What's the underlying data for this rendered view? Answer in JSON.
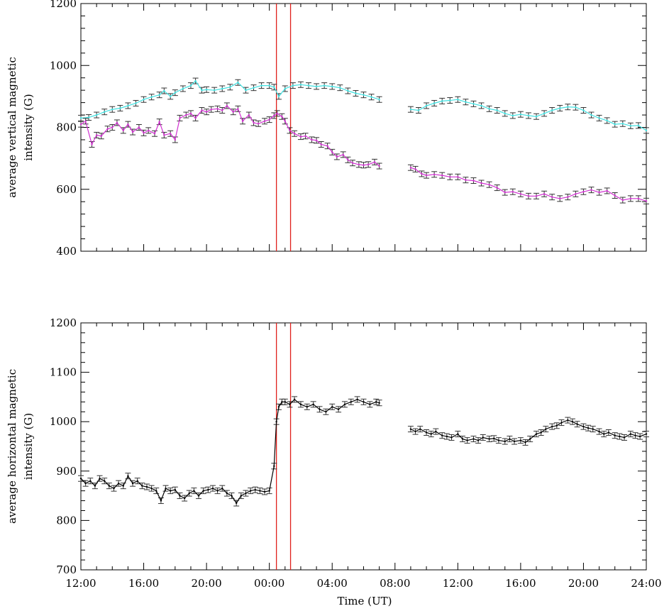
{
  "chart_data": [
    {
      "type": "line",
      "ylabel_lines": [
        "average vertical magnetic",
        "intensity (G)"
      ],
      "xlabel": "",
      "xlim": [
        12,
        48
      ],
      "ylim": [
        400,
        1200
      ],
      "yticks": [
        400,
        600,
        800,
        1000,
        1200
      ],
      "x_tick_labels_shown": false,
      "vlines": [
        24.45,
        25.35
      ],
      "vline_color": "#e0201c",
      "series": [
        {
          "color": "#40e0e0",
          "errorbars": true,
          "segments": [
            {
              "x": [
                12.0,
                12.5,
                13.0,
                13.5,
                14.0,
                14.5,
                15.0,
                15.5,
                16.0,
                16.5,
                17.0,
                17.3,
                17.7,
                18.0,
                18.5,
                19.0,
                19.3,
                19.7,
                20.0,
                20.5,
                21.0,
                21.5,
                22.0,
                22.5,
                23.0,
                23.5,
                24.0,
                24.3,
                24.6,
                25.0,
                25.5,
                26.0,
                26.5,
                27.0,
                27.5,
                28.0,
                28.5,
                29.0,
                29.5,
                30.0,
                30.5,
                31.0
              ],
              "y": [
                830,
                832,
                840,
                850,
                858,
                862,
                870,
                878,
                890,
                898,
                905,
                918,
                900,
                912,
                925,
                935,
                950,
                920,
                922,
                920,
                925,
                930,
                945,
                920,
                928,
                935,
                935,
                930,
                900,
                925,
                935,
                938,
                935,
                932,
                935,
                932,
                928,
                918,
                910,
                905,
                898,
                890
              ]
            },
            {
              "x": [
                33.0,
                33.5,
                34.0,
                34.5,
                35.0,
                35.5,
                36.0,
                36.5,
                37.0,
                37.5,
                38.0,
                38.5,
                39.0,
                39.5,
                40.0,
                40.5,
                41.0,
                41.5,
                42.0,
                42.5,
                43.0,
                43.5,
                44.0,
                44.5,
                45.0,
                45.5,
                46.0,
                46.5,
                47.0,
                47.5,
                48.0
              ],
              "y": [
                858,
                855,
                870,
                878,
                885,
                887,
                890,
                882,
                876,
                870,
                860,
                855,
                845,
                838,
                842,
                838,
                835,
                845,
                855,
                862,
                866,
                865,
                855,
                840,
                830,
                822,
                810,
                812,
                805,
                806,
                790
              ]
            }
          ]
        },
        {
          "color": "#d030d0",
          "errorbars": true,
          "segments": [
            {
              "x": [
                12.0,
                12.3,
                12.7,
                13.0,
                13.3,
                13.7,
                14.0,
                14.3,
                14.7,
                15.0,
                15.3,
                15.7,
                16.0,
                16.3,
                16.7,
                17.0,
                17.3,
                17.7,
                18.0,
                18.3,
                18.7,
                19.0,
                19.3,
                19.7,
                20.0,
                20.3,
                20.7,
                21.0,
                21.3,
                21.7,
                22.0,
                22.3,
                22.7,
                23.0,
                23.3,
                23.7,
                24.0,
                24.3,
                24.5,
                24.8,
                25.0,
                25.3,
                25.6,
                26.0,
                26.3,
                26.7,
                27.0,
                27.3,
                27.7,
                28.0,
                28.3,
                28.7,
                29.0,
                29.3,
                29.7,
                30.0,
                30.3,
                30.7,
                31.0
              ],
              "y": [
                810,
                820,
                745,
                775,
                772,
                795,
                800,
                815,
                790,
                810,
                785,
                800,
                782,
                790,
                780,
                818,
                775,
                780,
                760,
                830,
                840,
                845,
                830,
                855,
                850,
                858,
                860,
                855,
                870,
                850,
                860,
                820,
                840,
                815,
                812,
                820,
                825,
                838,
                845,
                835,
                820,
                790,
                780,
                770,
                772,
                760,
                758,
                745,
                740,
                720,
                705,
                712,
                695,
                685,
                680,
                678,
                680,
                688,
                675
              ]
            },
            {
              "x": [
                33.0,
                33.3,
                33.7,
                34.0,
                34.5,
                35.0,
                35.5,
                36.0,
                36.5,
                37.0,
                37.5,
                38.0,
                38.5,
                39.0,
                39.5,
                40.0,
                40.5,
                41.0,
                41.5,
                42.0,
                42.5,
                43.0,
                43.5,
                44.0,
                44.5,
                45.0,
                45.5,
                46.0,
                46.5,
                47.0,
                47.5,
                48.0
              ],
              "y": [
                670,
                665,
                650,
                645,
                648,
                645,
                640,
                640,
                630,
                628,
                620,
                615,
                605,
                590,
                592,
                585,
                578,
                578,
                585,
                575,
                570,
                575,
                585,
                592,
                598,
                590,
                595,
                580,
                565,
                570,
                570,
                562
              ]
            }
          ]
        }
      ]
    },
    {
      "type": "line",
      "ylabel_lines": [
        "average horizontal magnetic",
        "intensity (G)"
      ],
      "xlabel": "Time (UT)",
      "xlim": [
        12,
        48
      ],
      "ylim": [
        700,
        1200
      ],
      "yticks": [
        700,
        800,
        900,
        1000,
        1100,
        1200
      ],
      "x_tick_labels_shown": true,
      "xticks": [
        12,
        16,
        20,
        24,
        28,
        32,
        36,
        40,
        44,
        48
      ],
      "xtick_labels": [
        "12:00",
        "16:00",
        "20:00",
        "00:00",
        "04:00",
        "08:00",
        "12:00",
        "16:00",
        "20:00",
        "24:00"
      ],
      "vlines": [
        24.45,
        25.35
      ],
      "vline_color": "#e0201c",
      "series": [
        {
          "color": "#000000",
          "errorbars": true,
          "segments": [
            {
              "x": [
                12.0,
                12.3,
                12.6,
                12.9,
                13.2,
                13.5,
                13.8,
                14.1,
                14.4,
                14.7,
                15.0,
                15.3,
                15.6,
                15.9,
                16.2,
                16.5,
                16.8,
                17.1,
                17.4,
                17.7,
                18.0,
                18.3,
                18.6,
                18.9,
                19.2,
                19.5,
                19.8,
                20.1,
                20.4,
                20.7,
                21.0,
                21.3,
                21.6,
                21.9,
                22.2,
                22.5,
                22.8,
                23.1,
                23.4,
                23.7,
                24.0,
                24.3,
                24.45,
                24.6,
                24.8,
                25.0,
                25.3,
                25.6,
                26.0,
                26.4,
                26.8,
                27.2,
                27.6,
                28.0,
                28.4,
                28.8,
                29.2,
                29.6,
                30.0,
                30.4,
                30.8,
                31.0
              ],
              "y": [
                885,
                875,
                880,
                870,
                885,
                880,
                870,
                865,
                875,
                870,
                890,
                875,
                880,
                870,
                868,
                865,
                860,
                840,
                865,
                860,
                862,
                850,
                845,
                855,
                860,
                850,
                860,
                862,
                865,
                860,
                865,
                855,
                850,
                835,
                850,
                855,
                860,
                862,
                860,
                858,
                860,
                910,
                1000,
                1030,
                1040,
                1040,
                1035,
                1045,
                1035,
                1030,
                1035,
                1025,
                1020,
                1030,
                1025,
                1035,
                1040,
                1045,
                1040,
                1035,
                1040,
                1038
              ]
            },
            {
              "x": [
                33.0,
                33.3,
                33.6,
                34.0,
                34.3,
                34.6,
                35.0,
                35.3,
                35.6,
                36.0,
                36.3,
                36.6,
                37.0,
                37.3,
                37.6,
                38.0,
                38.3,
                38.6,
                39.0,
                39.3,
                39.6,
                40.0,
                40.3,
                40.6,
                41.0,
                41.3,
                41.6,
                42.0,
                42.3,
                42.6,
                43.0,
                43.3,
                43.6,
                44.0,
                44.3,
                44.6,
                45.0,
                45.3,
                45.6,
                46.0,
                46.3,
                46.6,
                47.0,
                47.3,
                47.6,
                48.0
              ],
              "y": [
                985,
                980,
                985,
                978,
                975,
                980,
                972,
                970,
                968,
                975,
                965,
                962,
                965,
                962,
                968,
                965,
                966,
                962,
                960,
                965,
                960,
                962,
                958,
                965,
                975,
                978,
                985,
                990,
                992,
                998,
                1003,
                1000,
                995,
                990,
                987,
                985,
                980,
                975,
                978,
                972,
                970,
                968,
                975,
                972,
                970,
                975
              ]
            }
          ]
        }
      ]
    }
  ]
}
